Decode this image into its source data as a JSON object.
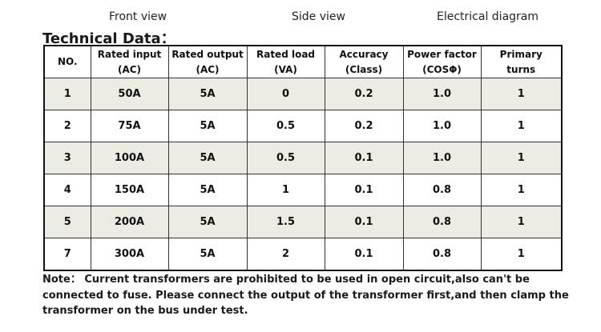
{
  "views": {
    "front": "Front view",
    "side": "Side view",
    "electrical": "Electrical diagram"
  },
  "title": "Technical Data：",
  "table": {
    "headers": [
      {
        "line1": "NO.",
        "line2": ""
      },
      {
        "line1": "Rated input",
        "line2": "(AC)"
      },
      {
        "line1": "Rated output",
        "line2": "(AC)"
      },
      {
        "line1": "Rated load",
        "line2": "(VA)"
      },
      {
        "line1": "Accuracy",
        "line2": "(Class)"
      },
      {
        "line1": "Power factor",
        "line2": "(COSΦ)"
      },
      {
        "line1": "Primary",
        "line2": "turns"
      }
    ],
    "rows": [
      [
        "1",
        "50A",
        "5A",
        "0",
        "0.2",
        "1.0",
        "1"
      ],
      [
        "2",
        "75A",
        "5A",
        "0.5",
        "0.2",
        "1.0",
        "1"
      ],
      [
        "3",
        "100A",
        "5A",
        "0.5",
        "0.1",
        "1.0",
        "1"
      ],
      [
        "4",
        "150A",
        "5A",
        "1",
        "0.1",
        "0.8",
        "1"
      ],
      [
        "5",
        "200A",
        "5A",
        "1.5",
        "0.1",
        "0.8",
        "1"
      ],
      [
        "7",
        "300A",
        "5A",
        "2",
        "0.1",
        "0.8",
        "1"
      ]
    ]
  },
  "note": "Note： Current transformers are prohibited to be used in open circuit,also can't be connected to fuse. Please connect the output of the transformer first,and then clamp the transformer on the bus under test.",
  "colors": {
    "shaded_row": "#ecece3",
    "border": "#111111"
  }
}
